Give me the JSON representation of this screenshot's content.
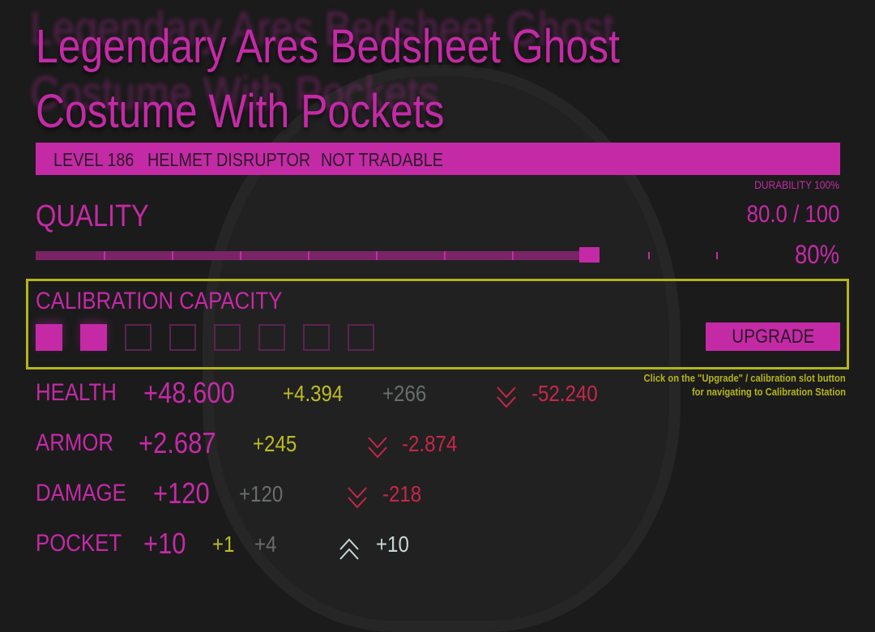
{
  "item": {
    "title": "Legendary Ares Bedsheet Ghost Costume With Pockets",
    "title_line1": "Legendary Ares Bedsheet Ghost",
    "title_line2": "Costume With Pockets",
    "tags": [
      "LEVEL 186",
      "HELMET",
      "DISRUPTOR",
      "NOT TRADABLE"
    ]
  },
  "quality": {
    "label": "QUALITY",
    "durability": "DURABILITY 100%",
    "value_text": "80.0 / 100",
    "percent_text": "80%",
    "fraction": 0.8
  },
  "calibration": {
    "label": "CALIBRATION CAPACITY",
    "slots_filled": 2,
    "slots_total": 8,
    "upgrade_label": "UPGRADE",
    "hint_line1": "Click on the \"Upgrade\" / calibration slot button",
    "hint_line2": "for navigating to Calibration Station"
  },
  "stats": [
    {
      "label": "HEALTH",
      "value": "+48.600",
      "bonus": "+4.394",
      "extra": "+266",
      "direction": "down",
      "delta": "-52.240"
    },
    {
      "label": "ARMOR",
      "value": "+2.687",
      "bonus": "+245",
      "extra": "",
      "direction": "down",
      "delta": "-2.874"
    },
    {
      "label": "DAMAGE",
      "value": "+120",
      "bonus": "",
      "extra": "+120",
      "direction": "down",
      "delta": "-218"
    },
    {
      "label": "POCKET",
      "value": "+10",
      "bonus": "+1",
      "extra": "+4",
      "direction": "up",
      "delta": "+10"
    }
  ],
  "colors": {
    "accent": "#c42aa6",
    "highlight": "#b4b41e",
    "negative": "#c8264a",
    "positive": "#c6d8d8",
    "muted": "#686c6c",
    "background": "#1b1b1b"
  }
}
